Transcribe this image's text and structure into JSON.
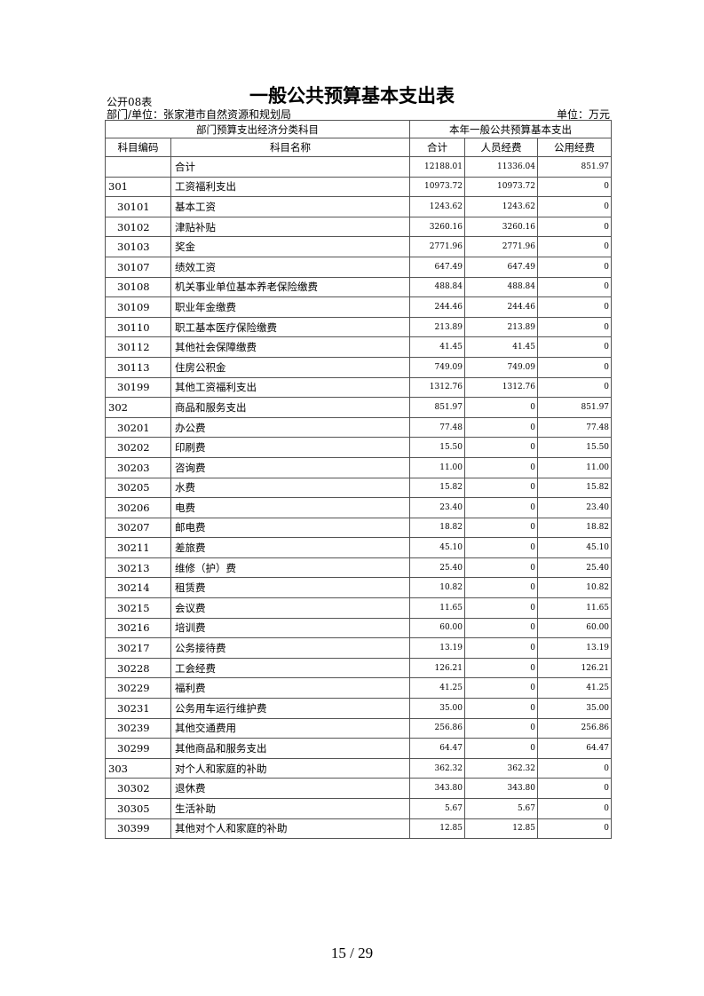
{
  "header": {
    "form_tag": "公开08表",
    "title": "一般公共预算基本支出表",
    "department": "部门/单位：张家港市自然资源和规划局",
    "unit": "单位：万元"
  },
  "table": {
    "group_headers": [
      "部门预算支出经济分类科目",
      "本年一般公共预算基本支出"
    ],
    "columns": [
      "科目编码",
      "科目名称",
      "合计",
      "人员经费",
      "公用经费"
    ],
    "rows": [
      {
        "code": "",
        "name": "合计",
        "total": "12188.01",
        "personnel": "11336.04",
        "public": "851.97",
        "level": 0
      },
      {
        "code": "301",
        "name": "工资福利支出",
        "total": "10973.72",
        "personnel": "10973.72",
        "public": "0",
        "level": 0
      },
      {
        "code": "30101",
        "name": "基本工资",
        "total": "1243.62",
        "personnel": "1243.62",
        "public": "0",
        "level": 1
      },
      {
        "code": "30102",
        "name": "津贴补贴",
        "total": "3260.16",
        "personnel": "3260.16",
        "public": "0",
        "level": 1
      },
      {
        "code": "30103",
        "name": "奖金",
        "total": "2771.96",
        "personnel": "2771.96",
        "public": "0",
        "level": 1
      },
      {
        "code": "30107",
        "name": "绩效工资",
        "total": "647.49",
        "personnel": "647.49",
        "public": "0",
        "level": 1
      },
      {
        "code": "30108",
        "name": "机关事业单位基本养老保险缴费",
        "total": "488.84",
        "personnel": "488.84",
        "public": "0",
        "level": 1
      },
      {
        "code": "30109",
        "name": "职业年金缴费",
        "total": "244.46",
        "personnel": "244.46",
        "public": "0",
        "level": 1
      },
      {
        "code": "30110",
        "name": "职工基本医疗保险缴费",
        "total": "213.89",
        "personnel": "213.89",
        "public": "0",
        "level": 1
      },
      {
        "code": "30112",
        "name": "其他社会保障缴费",
        "total": "41.45",
        "personnel": "41.45",
        "public": "0",
        "level": 1
      },
      {
        "code": "30113",
        "name": "住房公积金",
        "total": "749.09",
        "personnel": "749.09",
        "public": "0",
        "level": 1
      },
      {
        "code": "30199",
        "name": "其他工资福利支出",
        "total": "1312.76",
        "personnel": "1312.76",
        "public": "0",
        "level": 1
      },
      {
        "code": "302",
        "name": "商品和服务支出",
        "total": "851.97",
        "personnel": "0",
        "public": "851.97",
        "level": 0
      },
      {
        "code": "30201",
        "name": "办公费",
        "total": "77.48",
        "personnel": "0",
        "public": "77.48",
        "level": 1
      },
      {
        "code": "30202",
        "name": "印刷费",
        "total": "15.50",
        "personnel": "0",
        "public": "15.50",
        "level": 1
      },
      {
        "code": "30203",
        "name": "咨询费",
        "total": "11.00",
        "personnel": "0",
        "public": "11.00",
        "level": 1
      },
      {
        "code": "30205",
        "name": "水费",
        "total": "15.82",
        "personnel": "0",
        "public": "15.82",
        "level": 1
      },
      {
        "code": "30206",
        "name": "电费",
        "total": "23.40",
        "personnel": "0",
        "public": "23.40",
        "level": 1
      },
      {
        "code": "30207",
        "name": "邮电费",
        "total": "18.82",
        "personnel": "0",
        "public": "18.82",
        "level": 1
      },
      {
        "code": "30211",
        "name": "差旅费",
        "total": "45.10",
        "personnel": "0",
        "public": "45.10",
        "level": 1
      },
      {
        "code": "30213",
        "name": "维修（护）费",
        "total": "25.40",
        "personnel": "0",
        "public": "25.40",
        "level": 1
      },
      {
        "code": "30214",
        "name": "租赁费",
        "total": "10.82",
        "personnel": "0",
        "public": "10.82",
        "level": 1
      },
      {
        "code": "30215",
        "name": "会议费",
        "total": "11.65",
        "personnel": "0",
        "public": "11.65",
        "level": 1
      },
      {
        "code": "30216",
        "name": "培训费",
        "total": "60.00",
        "personnel": "0",
        "public": "60.00",
        "level": 1
      },
      {
        "code": "30217",
        "name": "公务接待费",
        "total": "13.19",
        "personnel": "0",
        "public": "13.19",
        "level": 1
      },
      {
        "code": "30228",
        "name": "工会经费",
        "total": "126.21",
        "personnel": "0",
        "public": "126.21",
        "level": 1
      },
      {
        "code": "30229",
        "name": "福利费",
        "total": "41.25",
        "personnel": "0",
        "public": "41.25",
        "level": 1
      },
      {
        "code": "30231",
        "name": "公务用车运行维护费",
        "total": "35.00",
        "personnel": "0",
        "public": "35.00",
        "level": 1
      },
      {
        "code": "30239",
        "name": "其他交通费用",
        "total": "256.86",
        "personnel": "0",
        "public": "256.86",
        "level": 1
      },
      {
        "code": "30299",
        "name": "其他商品和服务支出",
        "total": "64.47",
        "personnel": "0",
        "public": "64.47",
        "level": 1
      },
      {
        "code": "303",
        "name": "对个人和家庭的补助",
        "total": "362.32",
        "personnel": "362.32",
        "public": "0",
        "level": 0
      },
      {
        "code": "30302",
        "name": "退休费",
        "total": "343.80",
        "personnel": "343.80",
        "public": "0",
        "level": 1
      },
      {
        "code": "30305",
        "name": "生活补助",
        "total": "5.67",
        "personnel": "5.67",
        "public": "0",
        "level": 1
      },
      {
        "code": "30399",
        "name": "其他对个人和家庭的补助",
        "total": "12.85",
        "personnel": "12.85",
        "public": "0",
        "level": 1
      }
    ]
  },
  "footer": {
    "page": "15 / 29"
  }
}
